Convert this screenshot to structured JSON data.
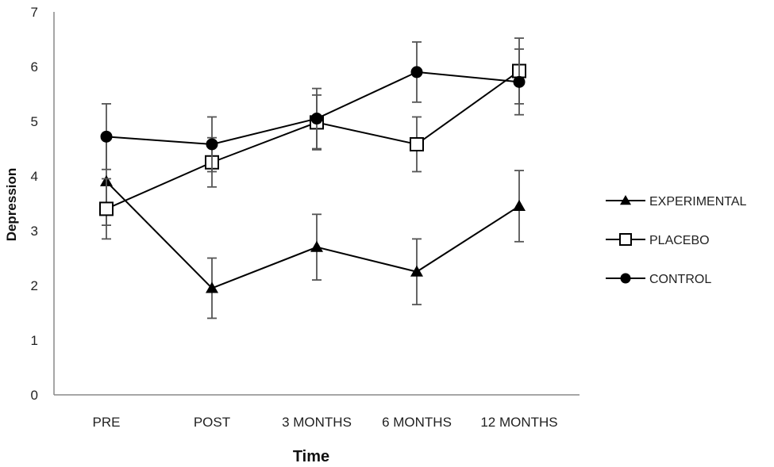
{
  "chart_data": {
    "type": "line",
    "xlabel": "Time",
    "ylabel": "Depression",
    "ylim": [
      0,
      7
    ],
    "yticks": [
      "0",
      "1",
      "2",
      "3",
      "4",
      "5",
      "6",
      "7"
    ],
    "categories": [
      "PRE",
      "POST",
      "3 MONTHS",
      "6 MONTHS",
      "12 MONTHS"
    ],
    "grid": false,
    "legend_position": "right",
    "series": [
      {
        "name": "EXPERIMENTAL",
        "marker": "triangle",
        "values": [
          3.9,
          1.95,
          2.7,
          2.25,
          3.45
        ],
        "error": [
          0.8,
          0.55,
          0.6,
          0.6,
          0.65
        ]
      },
      {
        "name": "PLACEBO",
        "marker": "open-square",
        "values": [
          3.4,
          4.25,
          4.98,
          4.58,
          5.92
        ],
        "error": [
          0.55,
          0.45,
          0.5,
          0.5,
          0.6
        ]
      },
      {
        "name": "CONTROL",
        "marker": "filled-circle",
        "values": [
          4.72,
          4.58,
          5.05,
          5.9,
          5.72
        ],
        "error": [
          0.6,
          0.5,
          0.55,
          0.55,
          0.6
        ]
      }
    ],
    "colors": {
      "line": "#000000",
      "error_bar": "#555555",
      "axis": "#888888"
    }
  }
}
